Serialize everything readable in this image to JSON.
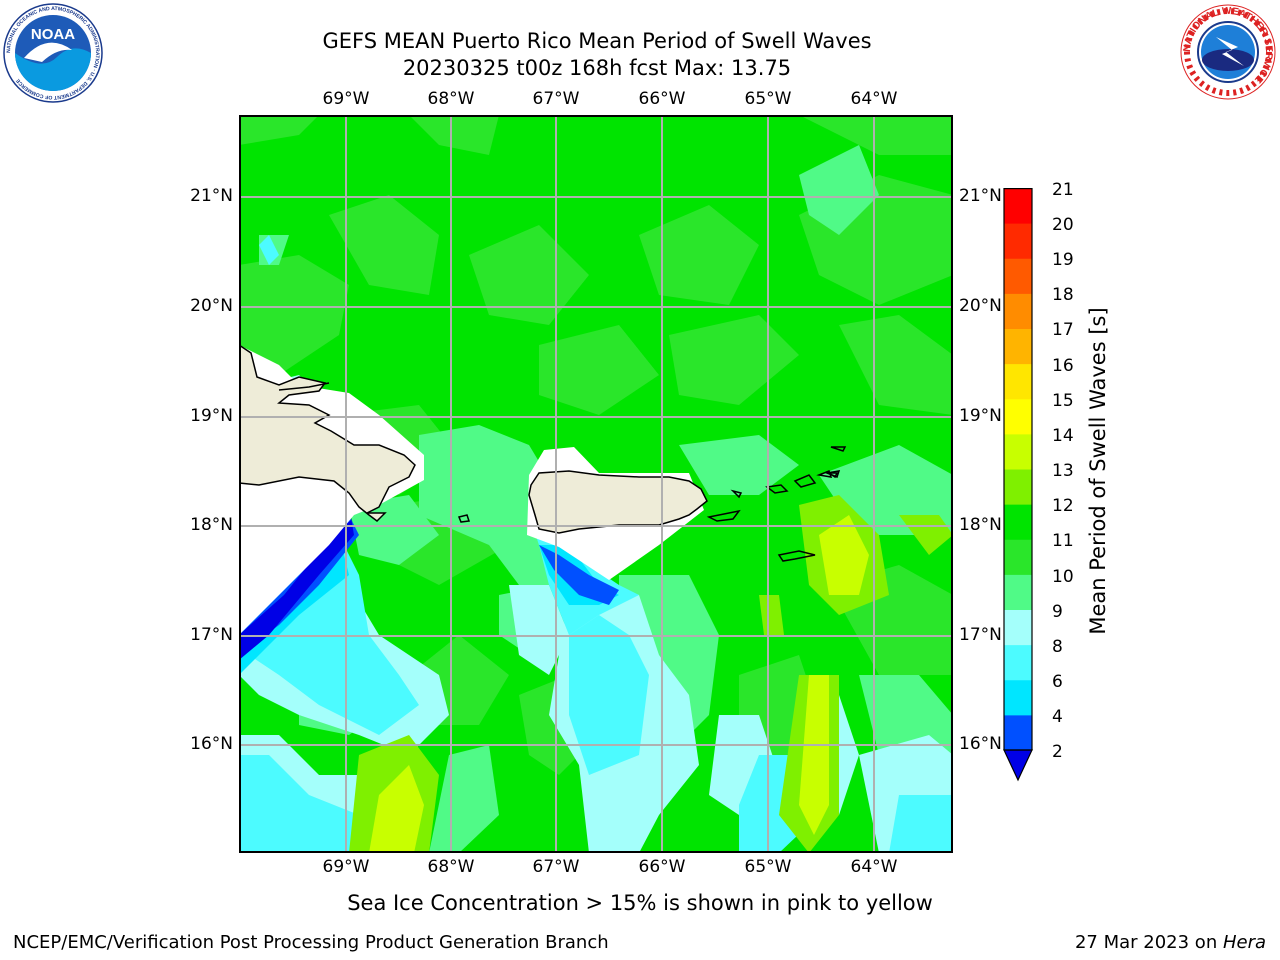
{
  "header": {
    "title_line1": "GEFS MEAN Puerto Rico Mean Period of Swell Waves",
    "title_line2": "20230325 t00z 168h fcst   Max: 13.75"
  },
  "logos": {
    "left": "NOAA",
    "left_ring_text": "NATIONAL OCEANIC AND ATMOSPHERIC ADMINISTRATION · U.S. DEPARTMENT OF COMMERCE",
    "right_ring_text": "NATIONAL WEATHER SERVICE"
  },
  "map": {
    "lon_ticks": [
      "69°W",
      "68°W",
      "67°W",
      "66°W",
      "65°W",
      "64°W"
    ],
    "lat_ticks": [
      "21°N",
      "20°N",
      "19°N",
      "18°N",
      "17°N",
      "16°N"
    ],
    "region": "Puerto Rico"
  },
  "colorbar": {
    "label": "Mean Period of Swell Waves [s]",
    "ticks": [
      "21",
      "20",
      "19",
      "18",
      "17",
      "16",
      "15",
      "14",
      "13",
      "12",
      "11",
      "10",
      "9",
      "8",
      "6",
      "4",
      "2"
    ],
    "levels": [
      2,
      4,
      6,
      8,
      9,
      10,
      11,
      12,
      13,
      14,
      15,
      16,
      17,
      18,
      19,
      20,
      21
    ],
    "colors": [
      "#0050ff",
      "#00e6ff",
      "#4cfbff",
      "#a4fffb",
      "#50fa87",
      "#2ae62a",
      "#00e400",
      "#7ff000",
      "#c8ff00",
      "#ffff00",
      "#ffe600",
      "#ffb400",
      "#ff8c00",
      "#ff5a00",
      "#ff2a00",
      "#ff0000"
    ],
    "under_color": "#0000e6"
  },
  "note": "Sea Ice Concentration > 15% is shown in pink to yellow",
  "footer": {
    "left": "NCEP/EMC/Verification Post Processing Product Generation Branch",
    "right_date": "27 Mar 2023 on ",
    "right_machine": "Hera"
  }
}
